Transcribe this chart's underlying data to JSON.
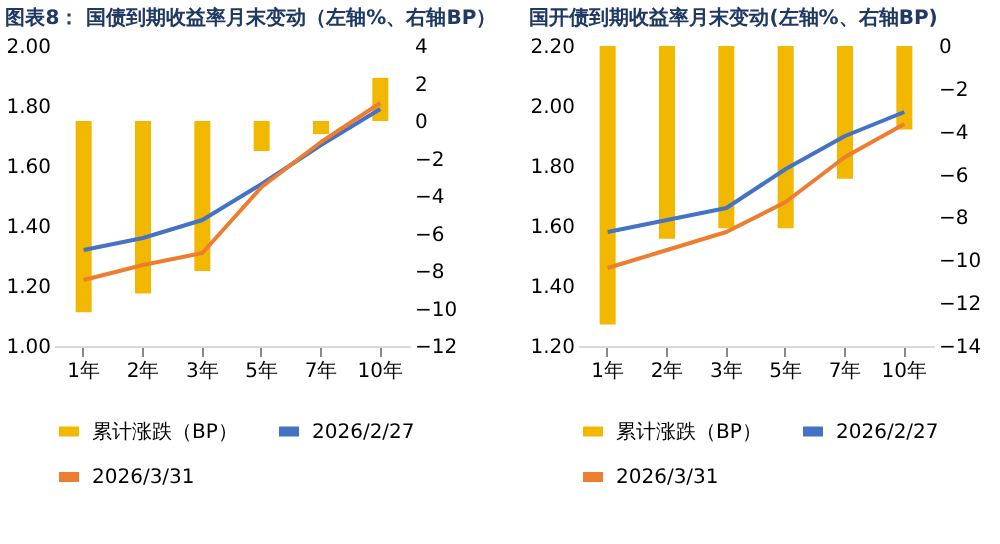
{
  "chart_data": [
    {
      "type": "bar",
      "title": "图表8：  国债到期收益率月末变动（左轴%、右轴BP）",
      "categories": [
        "1年",
        "2年",
        "3年",
        "5年",
        "7年",
        "10年"
      ],
      "legend": "bottom",
      "grid": false,
      "series": [
        {
          "name": "累计涨跌（BP）",
          "color": "#f2b800",
          "axis": "y2",
          "values": [
            -10.2,
            -9.2,
            -8,
            -1.6,
            -0.7,
            2.3
          ]
        },
        {
          "name": "2026/2/27",
          "type": "line",
          "color": "#4472c4",
          "values": [
            1.32,
            1.36,
            1.42,
            1.54,
            1.67,
            1.79
          ]
        },
        {
          "name": "2026/3/31",
          "type": "line",
          "color": "#ed7d31",
          "values": [
            1.22,
            1.27,
            1.31,
            1.53,
            1.68,
            1.81
          ]
        }
      ],
      "ylim": [
        1.0,
        2.0
      ],
      "yticks": [
        {
          "value": 1.0,
          "label": "1.00"
        },
        {
          "value": 1.2,
          "label": "1.20"
        },
        {
          "value": 1.4,
          "label": "1.40"
        },
        {
          "value": 1.6,
          "label": "1.60"
        },
        {
          "value": 1.8,
          "label": "1.80"
        },
        {
          "value": 2.0,
          "label": "2.00"
        }
      ],
      "y2lim": [
        -12,
        4
      ],
      "y2ticks": [
        -12,
        -10,
        -8,
        -6,
        -4,
        -2,
        0,
        2,
        4
      ]
    },
    {
      "type": "bar",
      "title": "国开债到期收益率月末变动(左轴%、右轴BP)",
      "categories": [
        "1年",
        "2年",
        "3年",
        "5年",
        "7年",
        "10年"
      ],
      "legend": "bottom",
      "grid": false,
      "series": [
        {
          "name": "累计涨跌（BP）",
          "color": "#f2b800",
          "axis": "y2",
          "values": [
            -13,
            -9,
            -8.5,
            -8.5,
            -6.2,
            -3.9
          ]
        },
        {
          "name": "2026/2/27",
          "type": "line",
          "color": "#4472c4",
          "values": [
            1.58,
            1.62,
            1.66,
            1.79,
            1.9,
            1.98
          ]
        },
        {
          "name": "2026/3/31",
          "type": "line",
          "color": "#ed7d31",
          "values": [
            1.46,
            1.52,
            1.58,
            1.68,
            1.83,
            1.94
          ]
        }
      ],
      "ylim": [
        1.2,
        2.2
      ],
      "yticks": [
        {
          "value": 1.2,
          "label": "1.20"
        },
        {
          "value": 1.4,
          "label": "1.40"
        },
        {
          "value": 1.6,
          "label": "1.60"
        },
        {
          "value": 1.8,
          "label": "1.80"
        },
        {
          "value": 2.0,
          "label": "2.00"
        },
        {
          "value": 2.2,
          "label": "2.20"
        }
      ],
      "y2lim": [
        -14,
        0
      ],
      "y2ticks": [
        -14,
        -12,
        -10,
        -8,
        -6,
        -4,
        -2,
        0
      ]
    }
  ]
}
